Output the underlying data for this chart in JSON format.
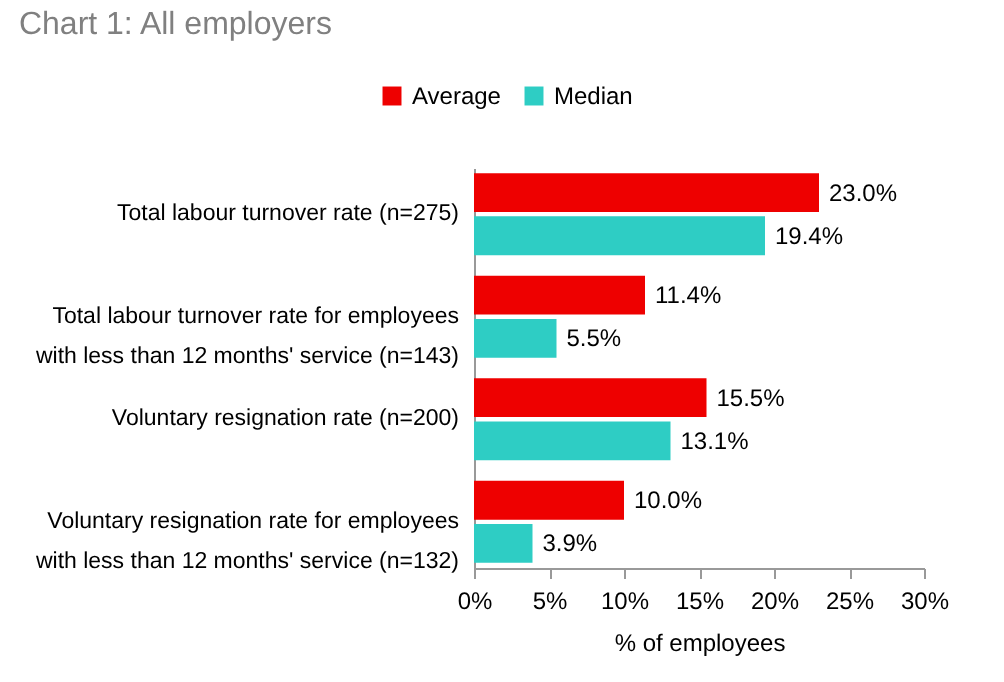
{
  "chart_data": {
    "type": "bar",
    "orientation": "horizontal",
    "title": "Chart 1: All employers",
    "xlabel": "% of employees",
    "categories": [
      "Total labour turnover rate (n=275)",
      "Total labour turnover rate for employees with less than 12 months' service (n=143)",
      "Voluntary resignation rate (n=200)",
      "Voluntary resignation rate for employees with less than 12 months' service (n=132)"
    ],
    "series": [
      {
        "name": "Average",
        "color": "#ee0000",
        "values": [
          23.0,
          11.4,
          15.5,
          10.0
        ],
        "value_labels": [
          "23.0%",
          "11.4%",
          "15.5%",
          "10.0%"
        ]
      },
      {
        "name": "Median",
        "color": "#2ecdc4",
        "values": [
          19.4,
          5.5,
          13.1,
          3.9
        ],
        "value_labels": [
          "19.4%",
          "5.5%",
          "13.1%",
          "3.9%"
        ]
      }
    ],
    "xlim": [
      0,
      30
    ],
    "xticks": [
      {
        "value": 0,
        "label": "0%"
      },
      {
        "value": 5,
        "label": "5%"
      },
      {
        "value": 10,
        "label": "10%"
      },
      {
        "value": 15,
        "label": "15%"
      },
      {
        "value": 20,
        "label": "20%"
      },
      {
        "value": 25,
        "label": "25%"
      },
      {
        "value": 30,
        "label": "30%"
      }
    ],
    "grid": false,
    "legend": "top"
  }
}
